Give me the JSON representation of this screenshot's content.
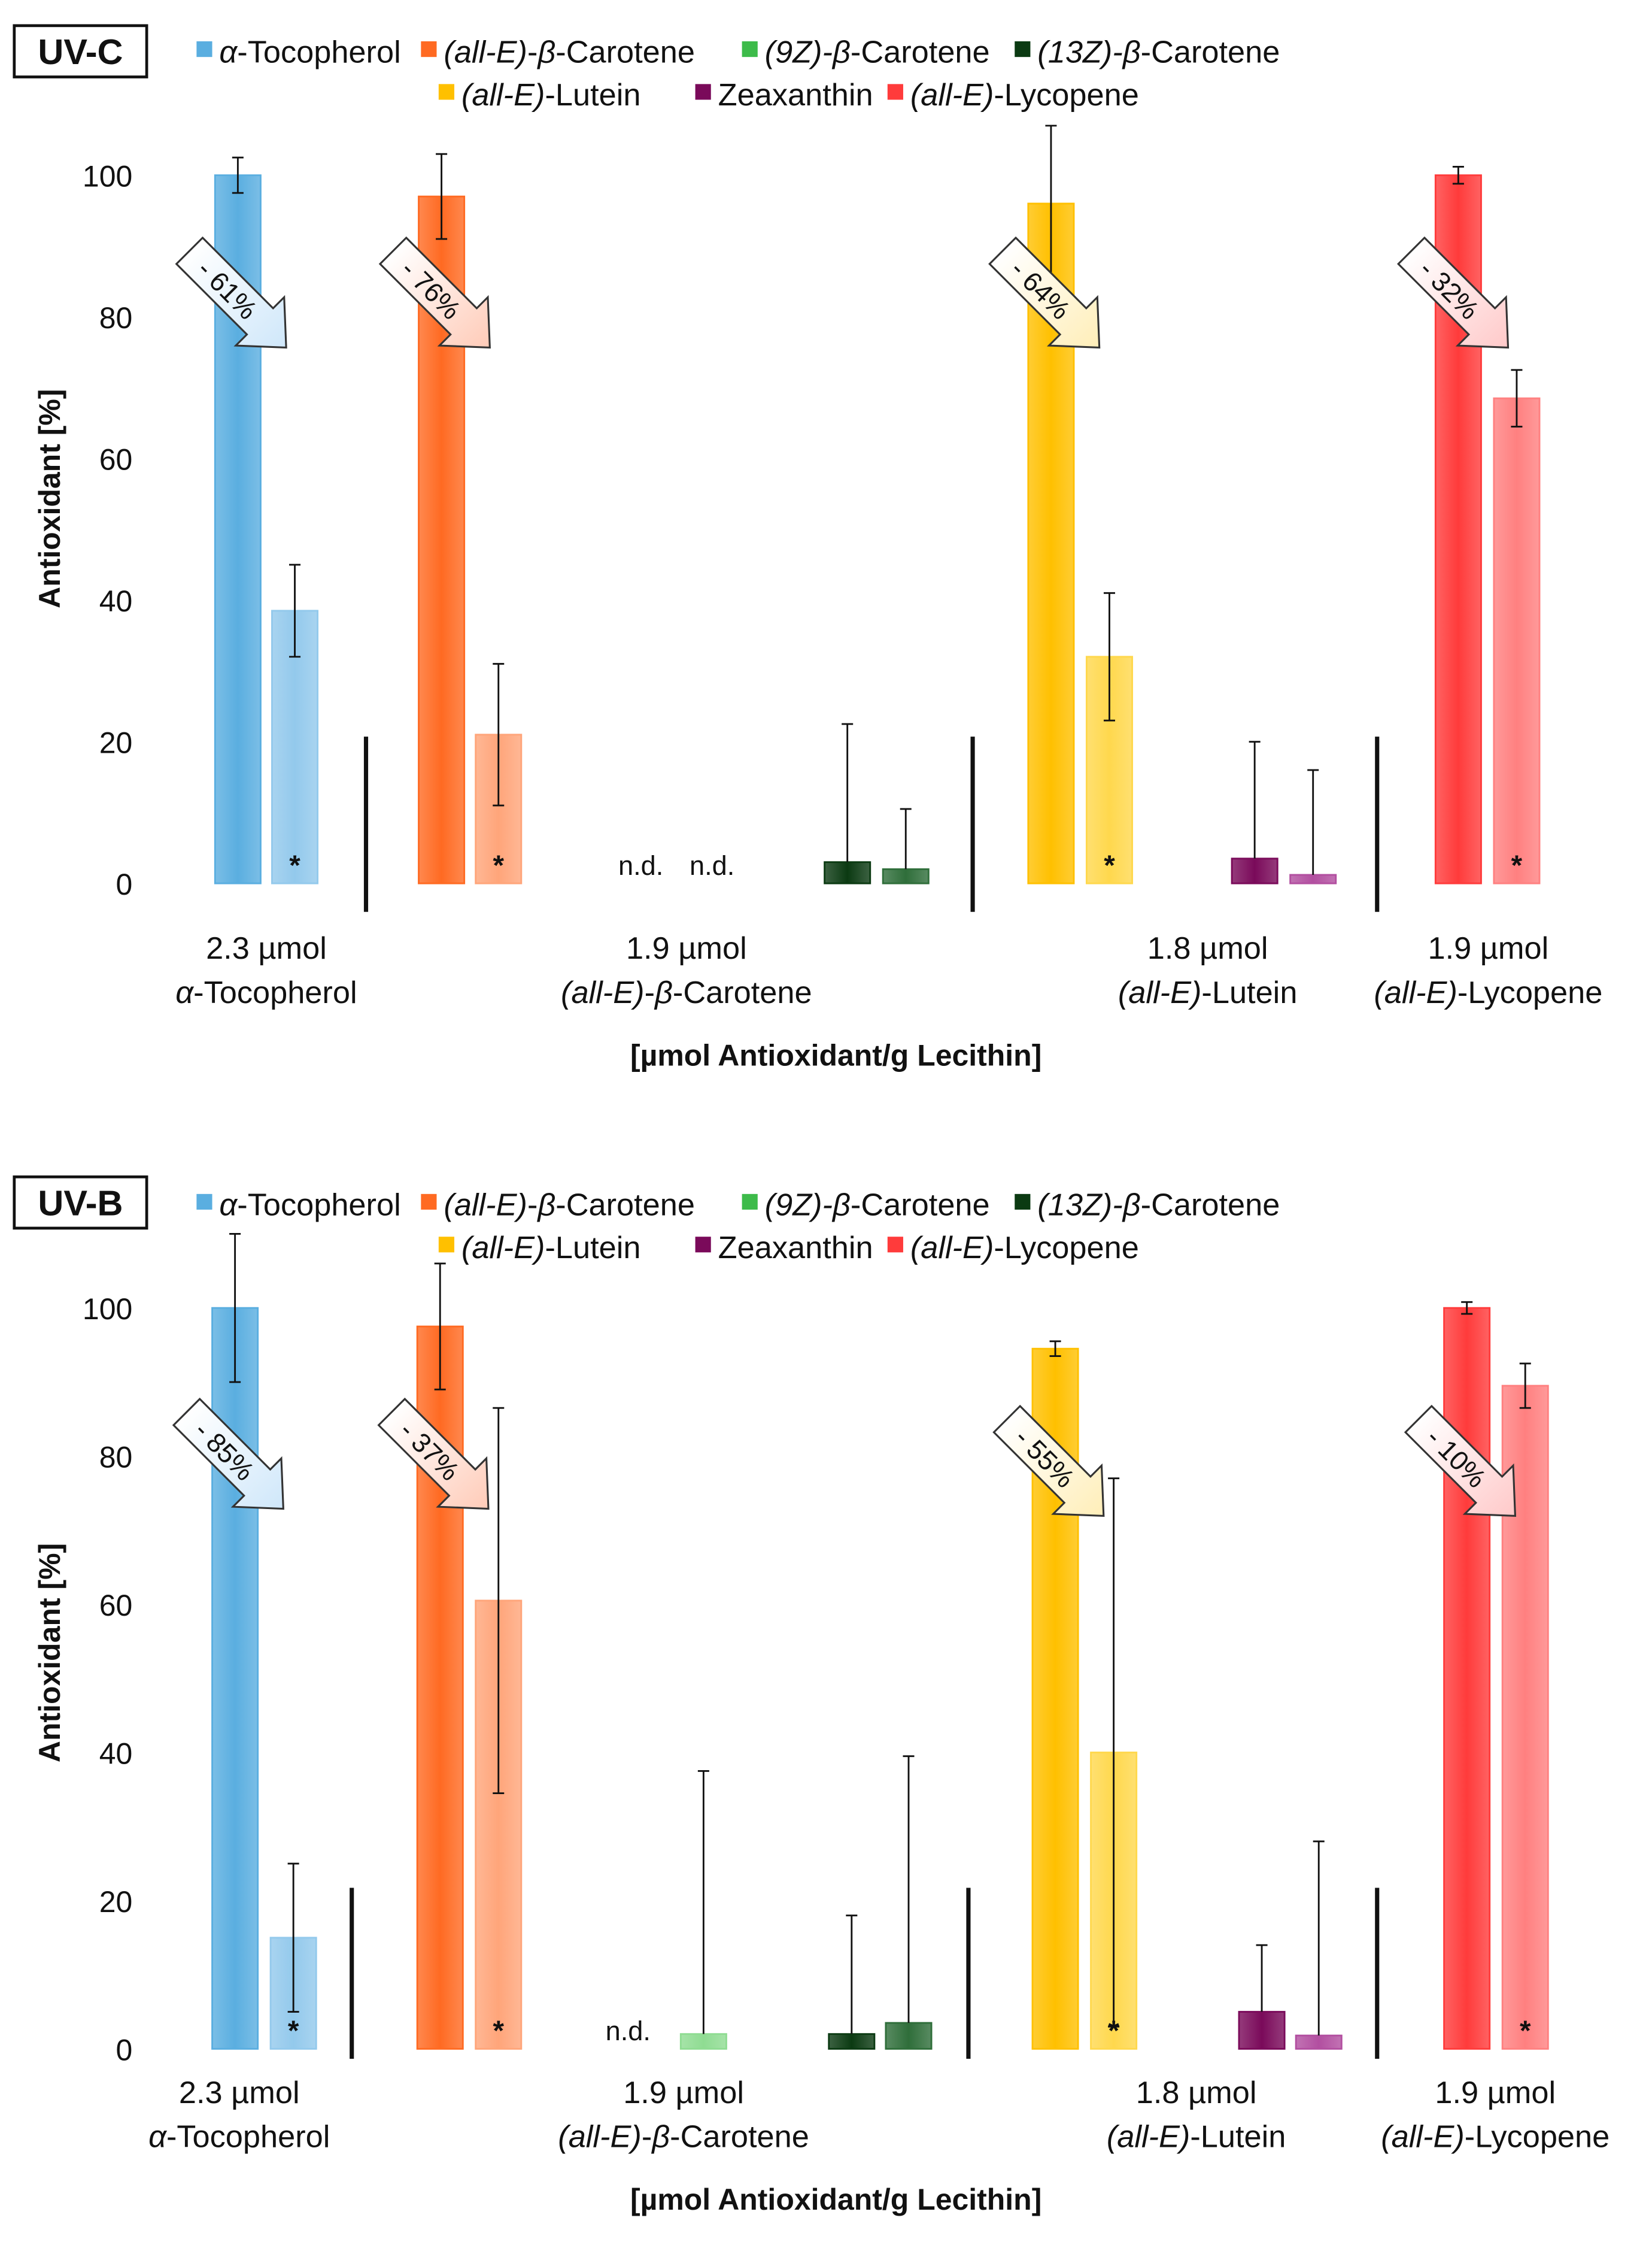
{
  "chart_data": {
    "type": "bar",
    "ylabel": "Antioxidant [%]",
    "xlabel": "[µmol Antioxidant/g Lecithin]",
    "ylim": [
      0,
      100
    ],
    "yticks": [
      "0",
      "20",
      "40",
      "60",
      "80",
      "100"
    ],
    "series": {
      "toc": {
        "label": [
          [
            "α",
            true
          ],
          [
            "-Tocopherol",
            false
          ]
        ],
        "color": "#5aaee0",
        "light": "#93c9ec",
        "arrow": "#cfe7fa"
      },
      "car": {
        "label": [
          [
            "(all-E)",
            true
          ],
          [
            "-",
            false
          ],
          [
            "β",
            true
          ],
          [
            "-Carotene",
            false
          ]
        ],
        "color": "#ff6a22",
        "light": "#ffa57a",
        "arrow": "#ffcbb8"
      },
      "c9z": {
        "label": [
          [
            "(9Z)-β",
            true
          ],
          [
            "-Carotene",
            false
          ]
        ],
        "color": "#3dbb4a",
        "light": "#8fdc92"
      },
      "c13z": {
        "label": [
          [
            "(13Z)-β",
            true
          ],
          [
            "-Carotene",
            false
          ]
        ],
        "color": "#0b3a12",
        "light": "#2f6e3a"
      },
      "lut": {
        "label": [
          [
            "(all-E)",
            true
          ],
          [
            "-Lutein",
            false
          ]
        ],
        "color": "#ffc000",
        "light": "#ffd84d",
        "arrow": "#ffeeb8"
      },
      "zea": {
        "label": [
          [
            "Zeaxanthin",
            false
          ]
        ],
        "color": "#7a0a5a",
        "light": "#b24fa0"
      },
      "lyc": {
        "label": [
          [
            "(all-E)",
            true
          ],
          [
            "-Lycopene",
            false
          ]
        ],
        "color": "#ff3b3b",
        "light": "#ff8080",
        "arrow": "#ffc9c9"
      }
    },
    "legend_order": [
      [
        "toc",
        "car",
        "c9z",
        "c13z"
      ],
      [
        "lut",
        "zea",
        "lyc"
      ]
    ],
    "categories": [
      {
        "amount": "2.3 µmol",
        "name": [
          [
            "α",
            true
          ],
          [
            "-Tocopherol",
            false
          ]
        ]
      },
      {
        "amount": "1.9 µmol",
        "name": [
          [
            "(all-E)",
            true
          ],
          [
            "-",
            false
          ],
          [
            "β",
            true
          ],
          [
            "-Carotene",
            false
          ]
        ]
      },
      {
        "amount": "1.8 µmol",
        "name": [
          [
            "(all-E)",
            true
          ],
          [
            "-Lutein",
            false
          ]
        ]
      },
      {
        "amount": "1.9 µmol",
        "name": [
          [
            "(all-E)",
            true
          ],
          [
            "-Lycopene",
            false
          ]
        ]
      }
    ],
    "nd_label": "n.d.",
    "star_label": "*",
    "panels": [
      {
        "title": "UV-C",
        "bars": [
          {
            "series": "toc",
            "state": "before",
            "value": 100,
            "err_up": 2.5,
            "err_down": 2.5
          },
          {
            "series": "toc",
            "state": "after",
            "value": 38.5,
            "err_up": 6.5,
            "err_down": 6.5,
            "star": true
          },
          {
            "series": "car",
            "state": "before",
            "value": 97,
            "err_up": 6,
            "err_down": 6
          },
          {
            "series": "car",
            "state": "after",
            "value": 21,
            "err_up": 10,
            "err_down": 10,
            "star": true
          },
          {
            "series": "c9z",
            "state": "before",
            "nd": true
          },
          {
            "series": "c9z",
            "state": "after",
            "nd": true
          },
          {
            "series": "c13z",
            "state": "before",
            "value": 3,
            "err_up": 19.5,
            "err_down": 0
          },
          {
            "series": "c13z",
            "state": "after",
            "value": 2,
            "err_up": 8.5,
            "err_down": 0
          },
          {
            "series": "lut",
            "state": "before",
            "value": 96,
            "err_up": 11,
            "err_down": 11
          },
          {
            "series": "lut",
            "state": "after",
            "value": 32,
            "err_up": 9,
            "err_down": 9,
            "star": true
          },
          {
            "series": "zea",
            "state": "before",
            "value": 3.5,
            "err_up": 16.5,
            "err_down": 0
          },
          {
            "series": "zea",
            "state": "after",
            "value": 1.2,
            "err_up": 14.8,
            "err_down": 0
          },
          {
            "series": "lyc",
            "state": "before",
            "value": 100,
            "err_up": 1.2,
            "err_down": 1.2
          },
          {
            "series": "lyc",
            "state": "after",
            "value": 68.5,
            "err_up": 4,
            "err_down": 4,
            "star": true
          }
        ],
        "reductions": [
          {
            "series": "toc",
            "label": "- 61%"
          },
          {
            "series": "car",
            "label": "- 76%"
          },
          {
            "series": "lut",
            "label": "- 64%"
          },
          {
            "series": "lyc",
            "label": "- 32%"
          }
        ]
      },
      {
        "title": "UV-B",
        "bars": [
          {
            "series": "toc",
            "state": "before",
            "value": 100,
            "err_up": 10,
            "err_down": 10
          },
          {
            "series": "toc",
            "state": "after",
            "value": 15,
            "err_up": 10,
            "err_down": 10,
            "star": true
          },
          {
            "series": "car",
            "state": "before",
            "value": 97.5,
            "err_up": 8.5,
            "err_down": 8.5
          },
          {
            "series": "car",
            "state": "after",
            "value": 60.5,
            "err_up": 26,
            "err_down": 26,
            "star": true
          },
          {
            "series": "c9z",
            "state": "before",
            "nd": true
          },
          {
            "series": "c9z",
            "state": "after",
            "value": 2,
            "err_up": 35.5,
            "err_down": 0
          },
          {
            "series": "c13z",
            "state": "before",
            "value": 2,
            "err_up": 16,
            "err_down": 0
          },
          {
            "series": "c13z",
            "state": "after",
            "value": 3.5,
            "err_up": 36,
            "err_down": 0
          },
          {
            "series": "lut",
            "state": "before",
            "value": 94.5,
            "err_up": 1,
            "err_down": 1
          },
          {
            "series": "lut",
            "state": "after",
            "value": 40,
            "err_up": 37,
            "err_down": 37,
            "star": true
          },
          {
            "series": "zea",
            "state": "before",
            "value": 5,
            "err_up": 9,
            "err_down": 0
          },
          {
            "series": "zea",
            "state": "after",
            "value": 1.8,
            "err_up": 26.2,
            "err_down": 0
          },
          {
            "series": "lyc",
            "state": "before",
            "value": 100,
            "err_up": 0.8,
            "err_down": 0.8
          },
          {
            "series": "lyc",
            "state": "after",
            "value": 89.5,
            "err_up": 3,
            "err_down": 3,
            "star": true
          }
        ],
        "reductions": [
          {
            "series": "toc",
            "label": "- 85%"
          },
          {
            "series": "car",
            "label": "- 37%"
          },
          {
            "series": "lut",
            "label": "- 55%"
          },
          {
            "series": "lyc",
            "label": "- 10%"
          }
        ]
      }
    ]
  }
}
